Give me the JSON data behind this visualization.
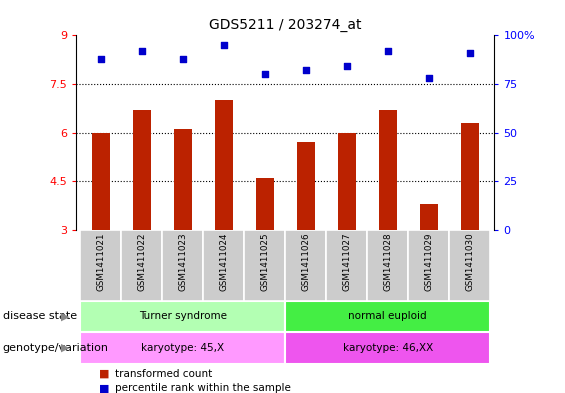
{
  "title": "GDS5211 / 203274_at",
  "samples": [
    "GSM1411021",
    "GSM1411022",
    "GSM1411023",
    "GSM1411024",
    "GSM1411025",
    "GSM1411026",
    "GSM1411027",
    "GSM1411028",
    "GSM1411029",
    "GSM1411030"
  ],
  "bar_values": [
    6.0,
    6.7,
    6.1,
    7.0,
    4.6,
    5.7,
    6.0,
    6.7,
    3.8,
    6.3
  ],
  "dot_values": [
    88,
    92,
    88,
    95,
    80,
    82,
    84,
    92,
    78,
    91
  ],
  "bar_color": "#bb2200",
  "dot_color": "#0000cc",
  "ylim_left": [
    3,
    9
  ],
  "ylim_right": [
    0,
    100
  ],
  "yticks_left": [
    3,
    4.5,
    6,
    7.5,
    9
  ],
  "yticks_right": [
    0,
    25,
    50,
    75,
    100
  ],
  "ytick_labels_left": [
    "3",
    "4.5",
    "6",
    "7.5",
    "9"
  ],
  "ytick_labels_right": [
    "0",
    "25",
    "50",
    "75",
    "100%"
  ],
  "grid_lines": [
    4.5,
    6.0,
    7.5
  ],
  "disease_state_groups": [
    {
      "label": "Turner syndrome",
      "start": 0,
      "end": 5,
      "color": "#b3ffb3"
    },
    {
      "label": "normal euploid",
      "start": 5,
      "end": 10,
      "color": "#44ee44"
    }
  ],
  "genotype_groups": [
    {
      "label": "karyotype: 45,X",
      "start": 0,
      "end": 5,
      "color": "#ff99ff"
    },
    {
      "label": "karyotype: 46,XX",
      "start": 5,
      "end": 10,
      "color": "#ee55ee"
    }
  ],
  "legend_bar_label": "transformed count",
  "legend_dot_label": "percentile rank within the sample",
  "label_disease_state": "disease state",
  "label_genotype": "genotype/variation",
  "sample_bg_color": "#cccccc",
  "bar_width": 0.45
}
